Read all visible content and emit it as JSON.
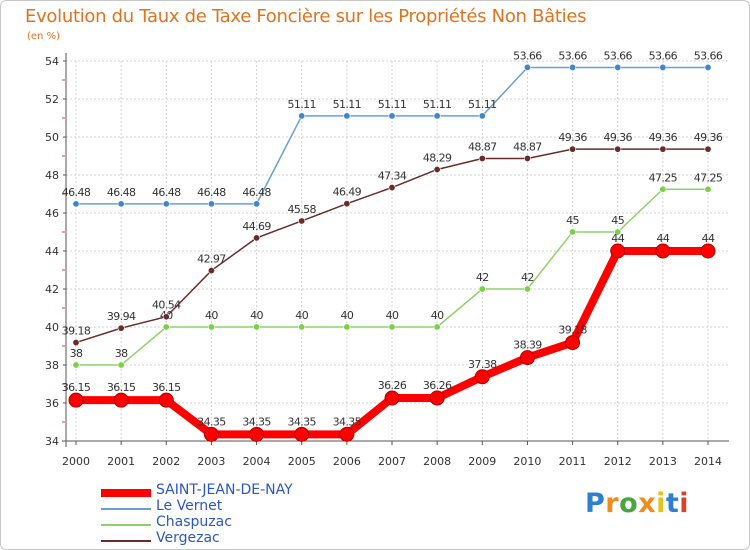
{
  "chart_data": {
    "type": "line",
    "title": "Evolution du Taux de Taxe Foncière sur les Propriétés Non Bâties",
    "ylabel": "(en %)",
    "xlabel": "",
    "categories": [
      "2000",
      "2001",
      "2002",
      "2003",
      "2004",
      "2005",
      "2006",
      "2007",
      "2008",
      "2009",
      "2010",
      "2011",
      "2012",
      "2013",
      "2014"
    ],
    "ylim": [
      34,
      54
    ],
    "yticks": [
      34,
      36,
      38,
      40,
      42,
      44,
      46,
      48,
      50,
      52,
      54
    ],
    "series": [
      {
        "name": "SAINT-JEAN-DE-NAY",
        "color": "#ff0000",
        "emphasis": true,
        "values": [
          36.15,
          36.15,
          36.15,
          34.35,
          34.35,
          34.35,
          34.35,
          36.26,
          36.26,
          37.38,
          38.39,
          39.18,
          44,
          44,
          44
        ],
        "labels": [
          "36.15",
          "36.15",
          "36.15",
          "34.35",
          "34.35",
          "34.35",
          "34.35",
          "36.26",
          "36.26",
          "37.38",
          "38.39",
          "39.18",
          "44",
          "44",
          "44"
        ]
      },
      {
        "name": "Le Vernet",
        "color": "#6a9fd6",
        "marker": "#3f86d1",
        "values": [
          46.48,
          46.48,
          46.48,
          46.48,
          46.48,
          51.11,
          51.11,
          51.11,
          51.11,
          51.11,
          53.66,
          53.66,
          53.66,
          53.66,
          53.66
        ],
        "labels": [
          "46.48",
          "46.48",
          "46.48",
          "46.48",
          "46.48",
          "51.11",
          "51.11",
          "51.11",
          "51.11",
          "51.11",
          "53.66",
          "53.66",
          "53.66",
          "53.66",
          "53.66"
        ]
      },
      {
        "name": "Chaspuzac",
        "color": "#8ed26a",
        "marker": "#7bd046",
        "values": [
          38,
          38,
          40,
          40,
          40,
          40,
          40,
          40,
          40,
          42,
          42,
          45,
          45,
          47.25,
          47.25
        ],
        "labels": [
          "38",
          "38",
          "40",
          "40",
          "40",
          "40",
          "40",
          "40",
          "40",
          "42",
          "42",
          "45",
          "45",
          "47.25",
          "47.25"
        ]
      },
      {
        "name": "Vergezac",
        "color": "#6b2b2b",
        "marker": "#6b2b2b",
        "values": [
          39.18,
          39.94,
          40.54,
          42.97,
          44.69,
          45.58,
          46.49,
          47.34,
          48.29,
          48.87,
          48.87,
          49.36,
          49.36,
          49.36,
          49.36
        ],
        "labels": [
          "39.18",
          "39.94",
          "40.54",
          "42.97",
          "44.69",
          "45.58",
          "46.49",
          "47.34",
          "48.29",
          "48.87",
          "48.87",
          "49.36",
          "49.36",
          "49.36",
          "49.36"
        ]
      }
    ]
  },
  "brand": {
    "letters": [
      "P",
      "r",
      "o",
      "x",
      "i",
      "t",
      "i"
    ],
    "colors": [
      "#2f7fd0",
      "#f08b1c",
      "#4aa43f",
      "#f08b1c",
      "#e8c21a",
      "#2f7fd0",
      "#d9412e"
    ]
  },
  "colors": {
    "title": "#e0731f",
    "axis_text": "#333333",
    "grid": "#cfcfcf",
    "axis": "#555555",
    "legend_text": "#2b57c6"
  }
}
